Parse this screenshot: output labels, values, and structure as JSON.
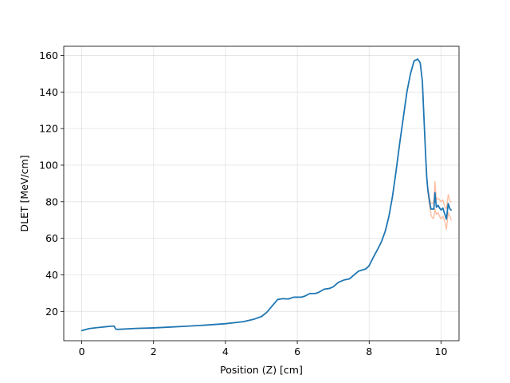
{
  "chart_data": {
    "type": "line",
    "title": "",
    "xlabel": "Position (Z) [cm]",
    "ylabel": "DLET [MeV/cm]",
    "xlim": [
      -0.5,
      10.5
    ],
    "ylim": [
      4,
      165
    ],
    "xticks": [
      0,
      2,
      4,
      6,
      8,
      10
    ],
    "yticks": [
      20,
      40,
      60,
      80,
      100,
      120,
      140,
      160
    ],
    "grid": true,
    "series": [
      {
        "color": "#1f77b4",
        "points": [
          [
            0,
            9.5
          ],
          [
            0.2,
            10.6
          ],
          [
            0.4,
            11.1
          ],
          [
            0.6,
            11.5
          ],
          [
            0.8,
            11.9
          ],
          [
            0.9,
            12.0
          ],
          [
            0.95,
            10.3
          ],
          [
            1.0,
            10.2
          ],
          [
            1.5,
            10.7
          ],
          [
            2,
            11.0
          ],
          [
            2.5,
            11.5
          ],
          [
            3,
            12.0
          ],
          [
            3.5,
            12.6
          ],
          [
            4,
            13.3
          ],
          [
            4.5,
            14.4
          ],
          [
            4.8,
            15.8
          ],
          [
            5.0,
            17.2
          ],
          [
            5.15,
            19.5
          ],
          [
            5.3,
            23
          ],
          [
            5.45,
            26.5
          ],
          [
            5.6,
            27
          ],
          [
            5.75,
            26.8
          ],
          [
            5.9,
            27.8
          ],
          [
            6.1,
            27.8
          ],
          [
            6.2,
            28.3
          ],
          [
            6.35,
            29.8
          ],
          [
            6.5,
            29.8
          ],
          [
            6.6,
            30.5
          ],
          [
            6.75,
            32.2
          ],
          [
            6.9,
            32.6
          ],
          [
            7.0,
            33.5
          ],
          [
            7.15,
            36
          ],
          [
            7.3,
            37.2
          ],
          [
            7.45,
            37.8
          ],
          [
            7.55,
            39.5
          ],
          [
            7.7,
            42
          ],
          [
            7.9,
            43.2
          ],
          [
            8.0,
            45
          ],
          [
            8.1,
            49
          ],
          [
            8.25,
            54.5
          ],
          [
            8.35,
            58.5
          ],
          [
            8.45,
            64
          ],
          [
            8.55,
            72
          ],
          [
            8.65,
            83
          ],
          [
            8.75,
            97
          ],
          [
            8.85,
            112
          ],
          [
            8.95,
            126
          ],
          [
            9.05,
            140
          ],
          [
            9.15,
            150
          ],
          [
            9.25,
            157
          ],
          [
            9.35,
            158
          ],
          [
            9.42,
            156
          ],
          [
            9.48,
            146
          ],
          [
            9.52,
            128
          ],
          [
            9.57,
            106
          ],
          [
            9.6,
            94
          ],
          [
            9.63,
            87
          ],
          [
            9.68,
            80
          ],
          [
            9.72,
            76
          ],
          [
            9.76,
            76
          ],
          [
            9.8,
            76
          ],
          [
            9.83,
            85
          ],
          [
            9.87,
            77
          ],
          [
            9.92,
            78
          ],
          [
            9.96,
            76.5
          ],
          [
            10.0,
            75.5
          ],
          [
            10.05,
            76.5
          ],
          [
            10.1,
            73.5
          ],
          [
            10.15,
            70.5
          ],
          [
            10.2,
            79
          ],
          [
            10.25,
            76
          ],
          [
            10.28,
            75.5
          ]
        ]
      },
      {
        "color": "#ffbb9c",
        "points": [
          [
            9.63,
            86
          ],
          [
            9.68,
            78
          ],
          [
            9.72,
            73
          ],
          [
            9.76,
            71
          ],
          [
            9.8,
            71
          ],
          [
            9.83,
            76
          ],
          [
            9.87,
            73
          ],
          [
            9.92,
            74
          ],
          [
            9.96,
            72
          ],
          [
            10.0,
            70.5
          ],
          [
            10.05,
            72
          ],
          [
            10.1,
            69.5
          ],
          [
            10.15,
            65
          ],
          [
            10.2,
            74
          ],
          [
            10.25,
            72
          ],
          [
            10.28,
            70
          ]
        ]
      },
      {
        "color": "#ffbb9c",
        "points": [
          [
            9.63,
            88
          ],
          [
            9.68,
            82
          ],
          [
            9.72,
            79
          ],
          [
            9.76,
            79
          ],
          [
            9.8,
            80
          ],
          [
            9.83,
            91
          ],
          [
            9.87,
            81
          ],
          [
            9.92,
            82
          ],
          [
            9.96,
            81
          ],
          [
            10.0,
            80
          ],
          [
            10.05,
            81
          ],
          [
            10.1,
            77.5
          ],
          [
            10.15,
            76
          ],
          [
            10.2,
            84
          ],
          [
            10.25,
            80
          ],
          [
            10.28,
            80
          ]
        ]
      }
    ]
  }
}
